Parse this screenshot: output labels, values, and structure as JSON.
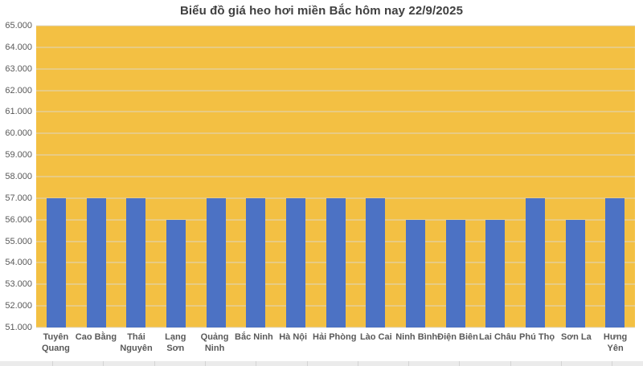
{
  "chart_data": {
    "type": "bar",
    "title": "Biểu đồ giá heo hơi miền Bắc hôm nay 22/9/2025",
    "categories": [
      "Tuyên Quang",
      "Cao Bằng",
      "Thái Nguyên",
      "Lạng Sơn",
      "Quảng Ninh",
      "Bắc Ninh",
      "Hà Nội",
      "Hải Phòng",
      "Lào Cai",
      "Ninh Bình",
      "Điện Biên",
      "Lai Châu",
      "Phú Thọ",
      "Sơn La",
      "Hưng Yên"
    ],
    "x_tick_labels": [
      "Tuyên\nQuang",
      "Cao Bằng",
      "Thái\nNguyên",
      "Lạng\nSơn",
      "Quảng\nNinh",
      "Bắc Ninh",
      "Hà Nội",
      "Hải Phòng",
      "Lào Cai",
      "Ninh Bình",
      "Điện Biên",
      "Lai Châu",
      "Phú Thọ",
      "Sơn La",
      "Hưng\nYên"
    ],
    "values": [
      57000,
      57000,
      57000,
      56000,
      57000,
      57000,
      57000,
      57000,
      57000,
      56000,
      56000,
      56000,
      57000,
      56000,
      57000
    ],
    "ylim": [
      51000,
      65000
    ],
    "ystep": 1000,
    "y_tick_labels": [
      "65.000",
      "64.000",
      "63.000",
      "62.000",
      "61.000",
      "60.000",
      "59.000",
      "58.000",
      "57.000",
      "56.000",
      "55.000",
      "54.000",
      "53.000",
      "52.000",
      "51.000"
    ],
    "grid": true,
    "legend": "none",
    "colors": {
      "plot_background": "#F3C043",
      "bar": "#4C72C4",
      "gridline": "rgba(217,217,217,0.85)",
      "axis_text": "#595959",
      "title_text": "#404040"
    }
  }
}
